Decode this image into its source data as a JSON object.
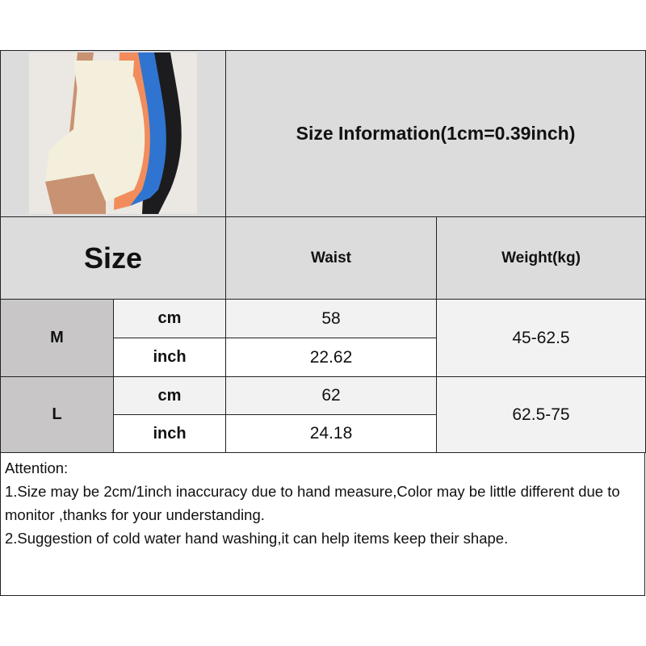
{
  "title": "Size Information(1cm=0.39inch)",
  "table": {
    "size_header": "Size",
    "columns": [
      "Waist",
      "Weight(kg)"
    ],
    "rows": [
      {
        "size": "M",
        "cm_label": "cm",
        "inch_label": "inch",
        "waist_cm": "58",
        "waist_inch": "22.62",
        "weight": "45-62.5"
      },
      {
        "size": "L",
        "cm_label": "cm",
        "inch_label": "inch",
        "waist_cm": "62",
        "waist_inch": "24.18",
        "weight": "62.5-75"
      }
    ]
  },
  "notes": {
    "heading": "Attention:",
    "lines": [
      "1.Size may be 2cm/1inch inaccuracy due to hand measure,Color may be little different due to monitor ,thanks for your understanding.",
      "2.Suggestion of cold water hand washing,it can help items keep their shape."
    ]
  },
  "product_colors": [
    "#f3efdc",
    "#f28c5c",
    "#2f74d0",
    "#1c1c1e"
  ]
}
